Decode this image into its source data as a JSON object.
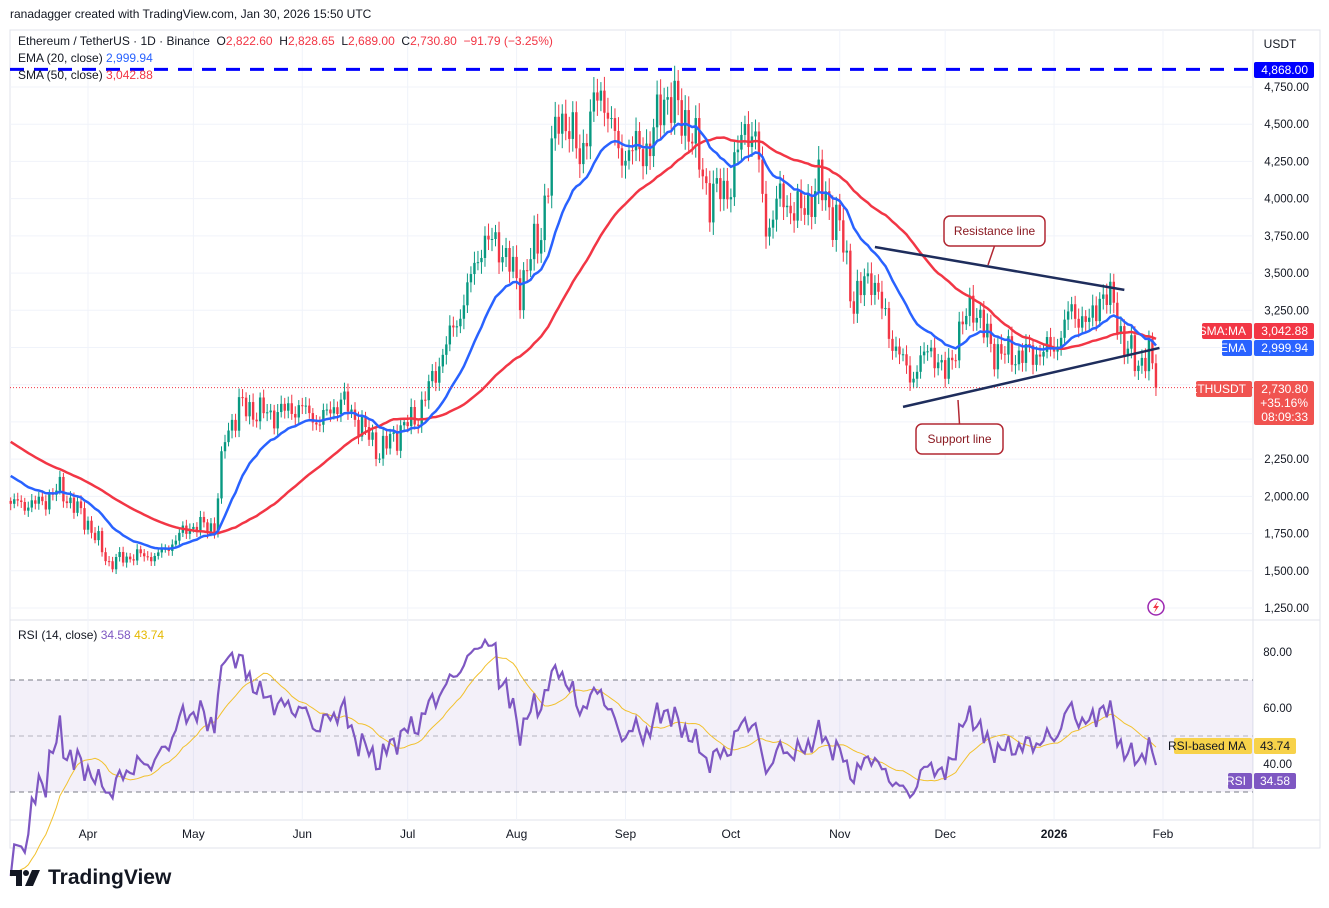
{
  "credit": "ranadagger created with TradingView.com, Jan 30, 2026 15:50 UTC",
  "legend": {
    "symbol": "Ethereum / TetherUS · 1D · Binance",
    "o_label": "O",
    "o": "2,822.60",
    "h_label": "H",
    "h": "2,828.65",
    "l_label": "L",
    "l": "2,689.00",
    "c_label": "C",
    "c": "2,730.80",
    "change": "−91.79 (−3.25%)",
    "ema_label": "EMA (20, close)",
    "ema_value": "2,999.94",
    "sma_label": "SMA (50, close)",
    "sma_value": "3,042.88",
    "rsi_label": "RSI (14, close)",
    "rsi_value": "34.58",
    "rsi_ma_value": "43.74"
  },
  "axis": {
    "currency": "USDT",
    "price_ticks": [
      "4,750.00",
      "4,500.00",
      "4,250.00",
      "4,000.00",
      "3,750.00",
      "3,500.00",
      "3,250.00",
      "2,250.00",
      "2,000.00",
      "1,750.00",
      "1,500.00",
      "1,250.00"
    ],
    "rsi_ticks": [
      "80.00",
      "60.00",
      "40.00"
    ],
    "time_ticks": [
      "Apr",
      "May",
      "Jun",
      "Jul",
      "Aug",
      "Sep",
      "Oct",
      "Nov",
      "Dec",
      "2026",
      "Feb"
    ]
  },
  "badges": {
    "high_level": "4,868.00",
    "sma_name": "SMA:MA",
    "sma": "3,042.88",
    "ema_name": "EMA",
    "ema": "2,999.94",
    "symbol_name": "ETHUSDT",
    "price": "2,730.80",
    "pct": "+35.16%",
    "countdown": "08:09:33",
    "rsi_ma_name": "RSI-based MA",
    "rsi_ma": "43.74",
    "rsi_name": "RSI",
    "rsi": "34.58"
  },
  "annotations": {
    "resistance": "Resistance line",
    "support": "Support line"
  },
  "brand": "TradingView",
  "colors": {
    "up": "#089981",
    "down": "#f23645",
    "ema": "#2962ff",
    "sma": "#f23645",
    "rsi": "#7e57c2",
    "rsi_ma": "#f2c12e",
    "level": "#0000ff"
  },
  "chart_data": {
    "type": "candlestick",
    "symbol": "ETHUSDT",
    "interval": "1D",
    "ylim": [
      1150,
      4950
    ],
    "horizontal_level": 4868,
    "close_keypoints": [
      [
        "2025-03-10",
        1950
      ],
      [
        "2025-03-18",
        1950
      ],
      [
        "2025-03-24",
        2050
      ],
      [
        "2025-04-01",
        1820
      ],
      [
        "2025-04-07",
        1550
      ],
      [
        "2025-04-13",
        1600
      ],
      [
        "2025-04-21",
        1600
      ],
      [
        "2025-04-30",
        1800
      ],
      [
        "2025-05-07",
        1800
      ],
      [
        "2025-05-10",
        2400
      ],
      [
        "2025-05-14",
        2600
      ],
      [
        "2025-05-23",
        2550
      ],
      [
        "2025-05-31",
        2600
      ],
      [
        "2025-06-06",
        2500
      ],
      [
        "2025-06-12",
        2650
      ],
      [
        "2025-06-17",
        2500
      ],
      [
        "2025-06-23",
        2300
      ],
      [
        "2025-06-29",
        2450
      ],
      [
        "2025-07-04",
        2550
      ],
      [
        "2025-07-10",
        2900
      ],
      [
        "2025-07-17",
        3300
      ],
      [
        "2025-07-22",
        3700
      ],
      [
        "2025-07-27",
        3700
      ],
      [
        "2025-08-02",
        3400
      ],
      [
        "2025-08-08",
        3800
      ],
      [
        "2025-08-13",
        4600
      ],
      [
        "2025-08-19",
        4300
      ],
      [
        "2025-08-25",
        4750
      ],
      [
        "2025-08-30",
        4300
      ],
      [
        "2025-09-08",
        4350
      ],
      [
        "2025-09-12",
        4700
      ],
      [
        "2025-09-19",
        4500
      ],
      [
        "2025-09-25",
        4000
      ],
      [
        "2025-10-01",
        4100
      ],
      [
        "2025-10-05",
        4500
      ],
      [
        "2025-10-08",
        4400
      ],
      [
        "2025-10-11",
        3800
      ],
      [
        "2025-10-15",
        4000
      ],
      [
        "2025-10-21",
        3900
      ],
      [
        "2025-10-26",
        4100
      ],
      [
        "2025-11-01",
        3800
      ],
      [
        "2025-11-05",
        3300
      ],
      [
        "2025-11-10",
        3500
      ],
      [
        "2025-11-15",
        3100
      ],
      [
        "2025-11-21",
        2800
      ],
      [
        "2025-11-27",
        3000
      ],
      [
        "2025-12-01",
        2800
      ],
      [
        "2025-12-05",
        3100
      ],
      [
        "2025-12-09",
        3300
      ],
      [
        "2025-12-14",
        3000
      ],
      [
        "2025-12-19",
        2950
      ],
      [
        "2025-12-25",
        2950
      ],
      [
        "2026-01-01",
        3000
      ],
      [
        "2026-01-06",
        3250
      ],
      [
        "2026-01-11",
        3150
      ],
      [
        "2026-01-14",
        3350
      ],
      [
        "2026-01-18",
        3300
      ],
      [
        "2026-01-21",
        3000
      ],
      [
        "2026-01-25",
        2900
      ],
      [
        "2026-01-28",
        2950
      ],
      [
        "2026-01-30",
        2730.8
      ]
    ],
    "trendlines": [
      {
        "label": "Resistance line",
        "from": [
          "2025-11-11",
          3675
        ],
        "to": [
          "2026-01-21",
          3387
        ]
      },
      {
        "label": "Support line",
        "from": [
          "2025-11-19",
          2601
        ],
        "to": [
          "2026-01-31",
          2997
        ]
      }
    ],
    "indicators": {
      "ema20_last": 2999.94,
      "sma50_last": 3042.88,
      "rsi14_last": 34.58,
      "rsi_ma_last": 43.74,
      "rsi_levels": [
        70,
        50,
        30
      ]
    }
  }
}
